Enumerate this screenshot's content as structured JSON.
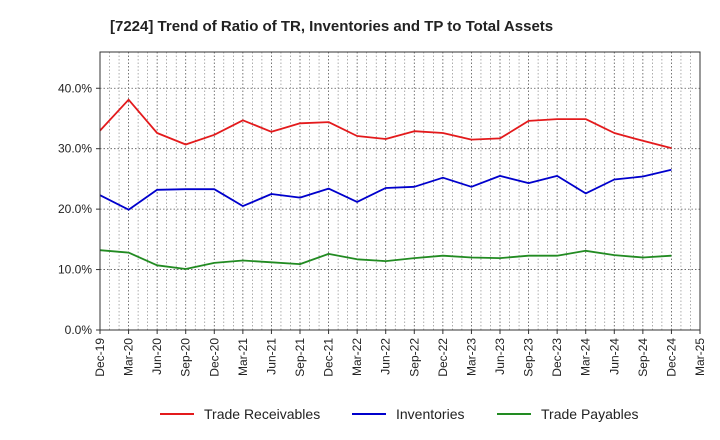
{
  "chart_data": {
    "type": "line",
    "title": "[7224]  Trend of Ratio of TR, Inventories and TP to Total Assets",
    "x": [
      "Dec-19",
      "Mar-20",
      "Jun-20",
      "Sep-20",
      "Dec-20",
      "Mar-21",
      "Jun-21",
      "Sep-21",
      "Dec-21",
      "Mar-22",
      "Jun-22",
      "Sep-22",
      "Dec-22",
      "Mar-23",
      "Jun-23",
      "Sep-23",
      "Dec-23",
      "Mar-24",
      "Jun-24",
      "Sep-24",
      "Dec-24",
      "Mar-25"
    ],
    "xlabel": "",
    "ylabel": "",
    "ylim": [
      0,
      0.46
    ],
    "yticks": [
      0,
      0.1,
      0.2,
      0.3,
      0.4
    ],
    "ytick_labels": [
      "0.0%",
      "10.0%",
      "20.0%",
      "30.0%",
      "40.0%"
    ],
    "grid": true,
    "legend_position": "bottom",
    "series": [
      {
        "name": "Trade Receivables",
        "color": "#e31a1c",
        "values": [
          0.33,
          0.381,
          0.326,
          0.307,
          0.323,
          0.347,
          0.328,
          0.342,
          0.344,
          0.321,
          0.316,
          0.329,
          0.326,
          0.315,
          0.317,
          0.346,
          0.349,
          0.349,
          0.326,
          0.313,
          0.301,
          null
        ]
      },
      {
        "name": "Inventories",
        "color": "#0000cc",
        "values": [
          0.223,
          0.199,
          0.232,
          0.233,
          0.233,
          0.205,
          0.225,
          0.219,
          0.234,
          0.212,
          0.235,
          0.237,
          0.252,
          0.237,
          0.255,
          0.243,
          0.255,
          0.226,
          0.249,
          0.254,
          0.265,
          null
        ]
      },
      {
        "name": "Trade Payables",
        "color": "#228b22",
        "values": [
          0.132,
          0.128,
          0.107,
          0.101,
          0.111,
          0.115,
          0.112,
          0.109,
          0.126,
          0.117,
          0.114,
          0.119,
          0.123,
          0.12,
          0.119,
          0.123,
          0.123,
          0.131,
          0.124,
          0.12,
          0.123,
          null
        ]
      }
    ]
  }
}
